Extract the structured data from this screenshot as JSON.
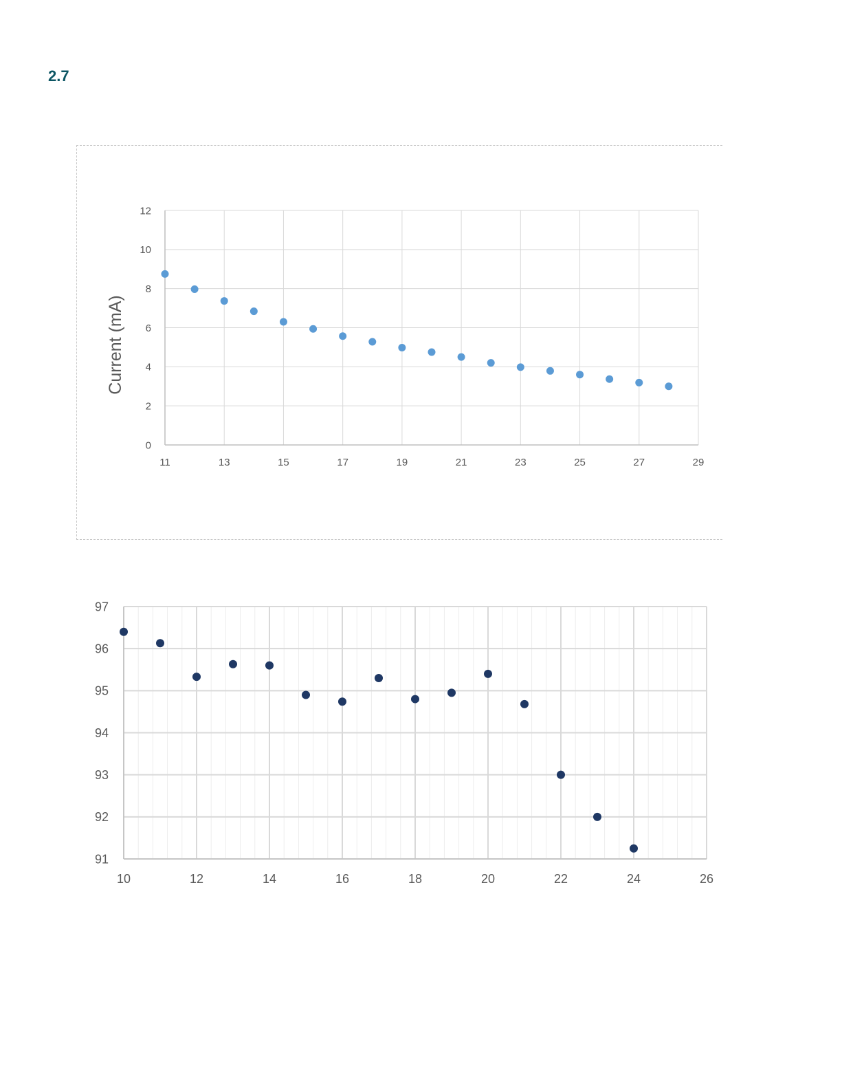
{
  "section": {
    "number": "2.7"
  },
  "colors": {
    "section_number": "#0b5563",
    "chart1_marker": "#5b9bd5",
    "chart2_marker": "#1f3864",
    "gridline": "#d9d9d9",
    "tick_label": "#595959"
  },
  "chart_data": [
    {
      "type": "scatter",
      "title": "",
      "xlabel": "",
      "ylabel": "Current (mA)",
      "xlim": [
        11,
        29
      ],
      "ylim": [
        0,
        12
      ],
      "x_ticks": [
        11,
        13,
        15,
        17,
        19,
        21,
        23,
        25,
        27,
        29
      ],
      "y_ticks": [
        0,
        2,
        4,
        6,
        8,
        10,
        12
      ],
      "grid": true,
      "legend": "none",
      "marker_color": "#5b9bd5",
      "points": [
        {
          "x": 11,
          "y": 8.75
        },
        {
          "x": 12,
          "y": 7.97
        },
        {
          "x": 13,
          "y": 7.37
        },
        {
          "x": 14,
          "y": 6.84
        },
        {
          "x": 15,
          "y": 6.3
        },
        {
          "x": 16,
          "y": 5.94
        },
        {
          "x": 17,
          "y": 5.57
        },
        {
          "x": 18,
          "y": 5.28
        },
        {
          "x": 19,
          "y": 4.98
        },
        {
          "x": 20,
          "y": 4.75
        },
        {
          "x": 21,
          "y": 4.5
        },
        {
          "x": 22,
          "y": 4.2
        },
        {
          "x": 23,
          "y": 3.98
        },
        {
          "x": 24,
          "y": 3.79
        },
        {
          "x": 25,
          "y": 3.6
        },
        {
          "x": 26,
          "y": 3.37
        },
        {
          "x": 27,
          "y": 3.19
        },
        {
          "x": 28,
          "y": 3.0
        }
      ]
    },
    {
      "type": "scatter",
      "title": "",
      "xlabel": "",
      "ylabel": "",
      "xlim": [
        10,
        26
      ],
      "ylim": [
        91,
        97
      ],
      "x_ticks": [
        10,
        12,
        14,
        16,
        18,
        20,
        22,
        24,
        26
      ],
      "y_ticks": [
        91,
        92,
        93,
        94,
        95,
        96,
        97
      ],
      "grid": true,
      "minor_grid": true,
      "legend": "none",
      "marker_color": "#1f3864",
      "points": [
        {
          "x": 10,
          "y": 96.4
        },
        {
          "x": 11,
          "y": 96.13
        },
        {
          "x": 12,
          "y": 95.33
        },
        {
          "x": 13,
          "y": 95.63
        },
        {
          "x": 14,
          "y": 95.6
        },
        {
          "x": 15,
          "y": 94.9
        },
        {
          "x": 16,
          "y": 94.74
        },
        {
          "x": 17,
          "y": 95.3
        },
        {
          "x": 18,
          "y": 94.8
        },
        {
          "x": 19,
          "y": 94.95
        },
        {
          "x": 20,
          "y": 95.4
        },
        {
          "x": 21,
          "y": 94.68
        },
        {
          "x": 22,
          "y": 93.0
        },
        {
          "x": 23,
          "y": 92.0
        },
        {
          "x": 24,
          "y": 91.25
        }
      ]
    }
  ]
}
